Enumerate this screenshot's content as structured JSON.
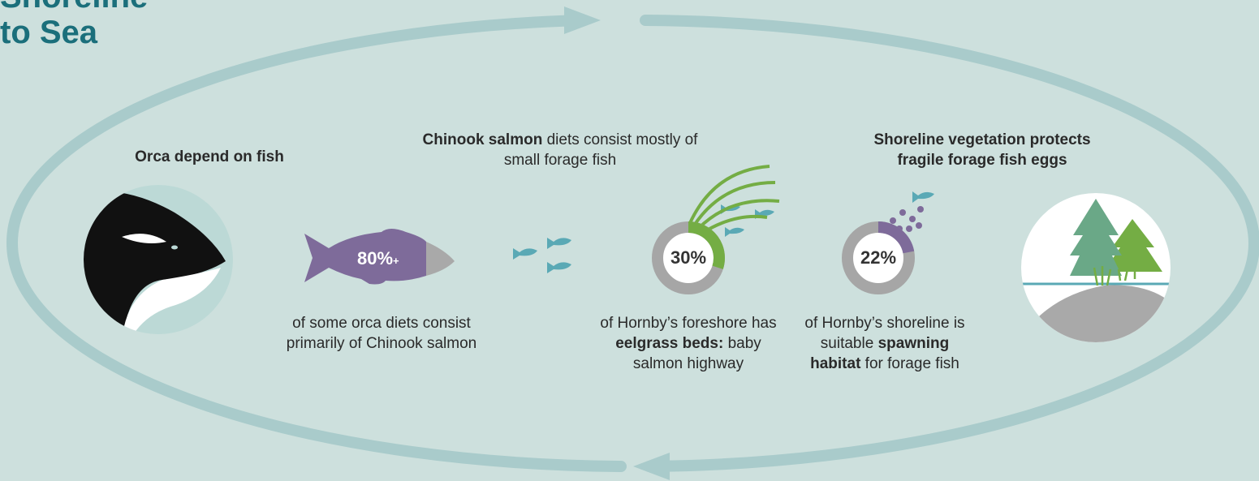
{
  "title": {
    "lines": [
      "Shoreline",
      "to Sea"
    ]
  },
  "panels": [
    {
      "heading": [
        {
          "text": "Orca depend on fish",
          "bold": true
        }
      ]
    },
    {
      "stat": {
        "value": 80,
        "label": "80%",
        "suffix": "+",
        "color": "#7e6b9a"
      },
      "caption": [
        {
          "text": "of some orca diets consist primarily of Chinook salmon",
          "bold": false
        }
      ]
    },
    {
      "heading": [
        {
          "text": "Chinook salmon",
          "bold": true
        },
        {
          "text": " diets consist mostly of small forage fish",
          "bold": false
        }
      ],
      "stat": {
        "value": 30,
        "label": "30%",
        "color": "#74ad44"
      },
      "caption": [
        {
          "text": "of Hornby’s foreshore has ",
          "bold": false
        },
        {
          "text": "eelgrass beds:",
          "bold": true
        },
        {
          "text": " baby salmon highway",
          "bold": false
        }
      ]
    },
    {
      "stat": {
        "value": 22,
        "label": "22%",
        "color": "#7e6b9a"
      },
      "caption": [
        {
          "text": "of Hornby’s shoreline is suitable ",
          "bold": false
        },
        {
          "text": "spawning habitat",
          "bold": true
        },
        {
          "text": " for forage fish",
          "bold": false
        }
      ]
    },
    {
      "heading": [
        {
          "text": "Shoreline vegetation protects fragile forage fish eggs",
          "bold": true
        }
      ]
    }
  ]
}
